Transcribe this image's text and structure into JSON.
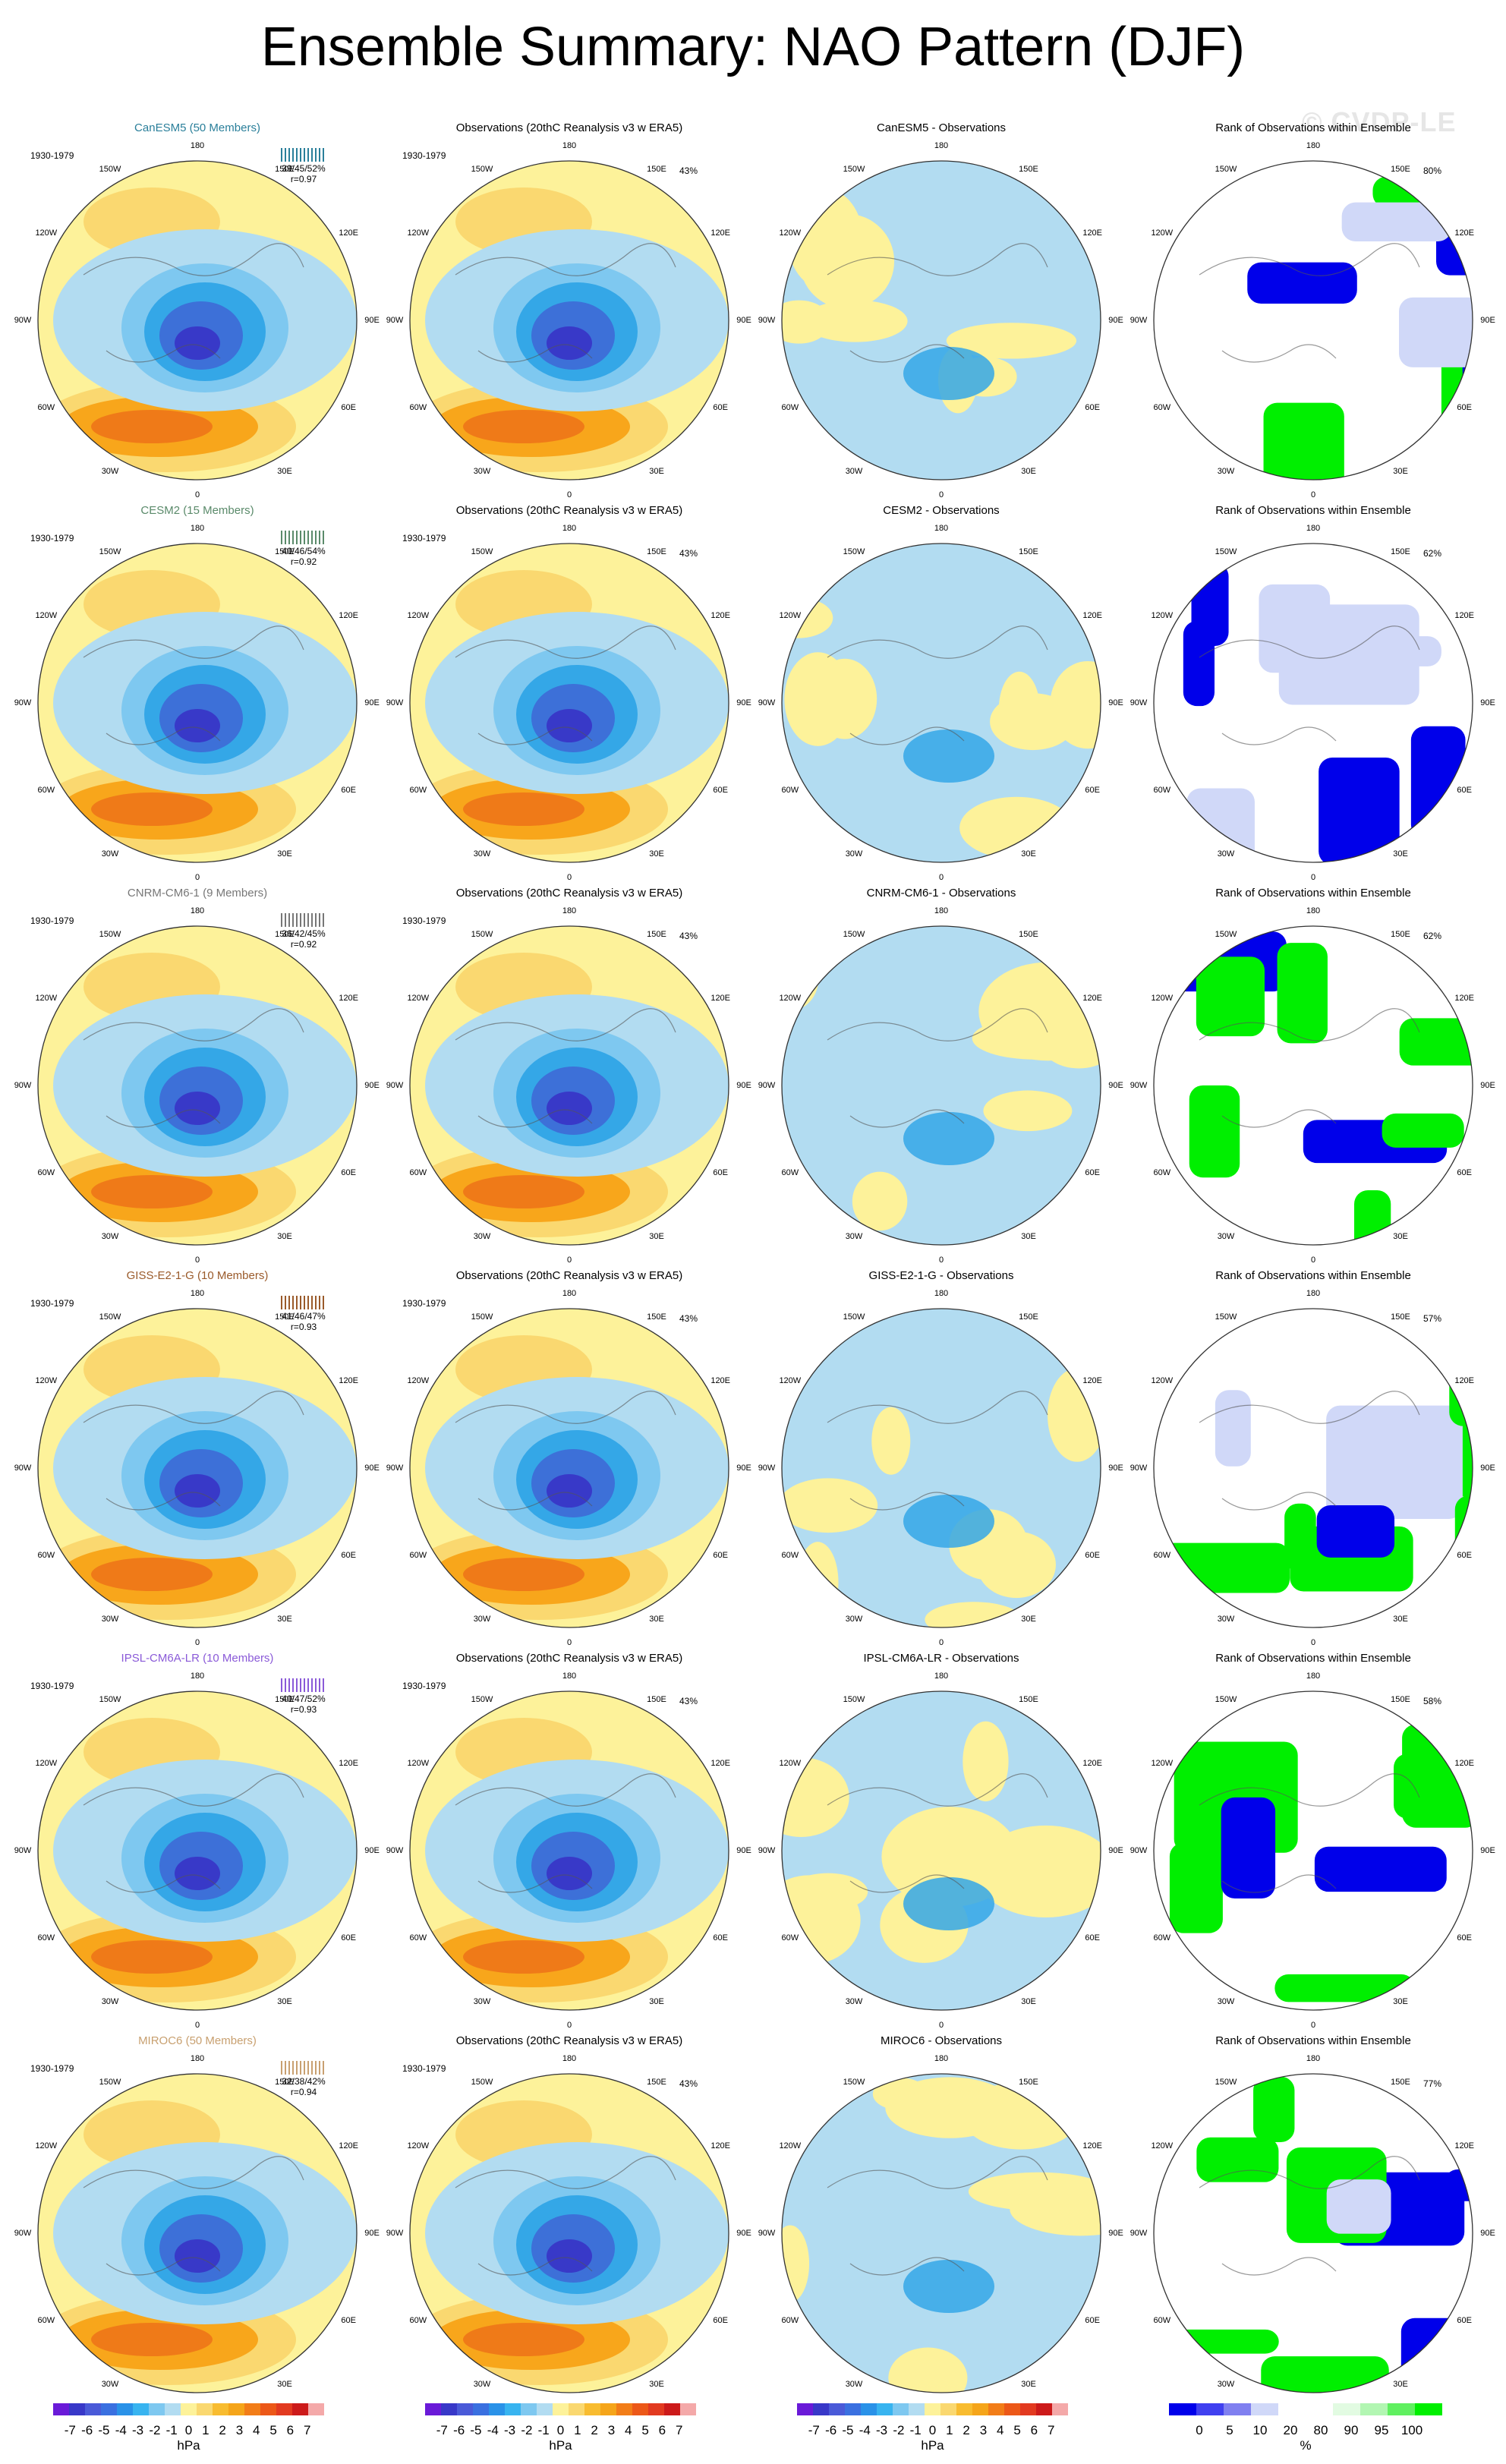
{
  "title": "Ensemble Summary: NAO Pattern (DJF)",
  "watermark": "© CVDP-LE",
  "longitude_labels": [
    "180",
    "150E",
    "120E",
    "90E",
    "60E",
    "30E",
    "0",
    "30W",
    "60W",
    "90W",
    "120W",
    "150W"
  ],
  "colors": {
    "yellow": "#fdf29a",
    "orange": "#f8a61b",
    "deep_orange": "#ef7a18",
    "light_blue": "#b2dcf1",
    "blue": "#34a7e7",
    "dark_blue": "#3d70d8",
    "navy": "#3839c8",
    "green": "#00ef00",
    "rank_blue": "#0000ea"
  },
  "rows": [
    {
      "model": "CanESM5 (50 Members)",
      "short": "CanESM5",
      "color": "#2a7f9a",
      "stats": "39/45/52%",
      "r": "r=0.97",
      "rank_pct": "80%"
    },
    {
      "model": "CESM2 (15 Members)",
      "short": "CESM2",
      "color": "#5a8a6a",
      "stats": "40/46/54%",
      "r": "r=0.92",
      "rank_pct": "62%"
    },
    {
      "model": "CNRM-CM6-1 (9 Members)",
      "short": "CNRM-CM6-1",
      "color": "#777777",
      "stats": "36/42/45%",
      "r": "r=0.92",
      "rank_pct": "62%"
    },
    {
      "model": "GISS-E2-1-G (10 Members)",
      "short": "GISS-E2-1-G",
      "color": "#9a5a2a",
      "stats": "41/46/47%",
      "r": "r=0.93",
      "rank_pct": "57%"
    },
    {
      "model": "IPSL-CM6A-LR (10 Members)",
      "short": "IPSL-CM6A-LR",
      "color": "#8a5ad8",
      "stats": "40/47/52%",
      "r": "r=0.93",
      "rank_pct": "58%"
    },
    {
      "model": "MIROC6 (50 Members)",
      "short": "MIROC6",
      "color": "#c8a070",
      "stats": "32/38/42%",
      "r": "r=0.94",
      "rank_pct": "77%"
    }
  ],
  "common": {
    "period": "1930-1979",
    "obs_title": "Observations (20thC Reanalysis v3 w ERA5)",
    "obs_pct": "43%",
    "diff_suffix": " - Observations",
    "rank_title": "Rank of Observations within Ensemble"
  },
  "colorbars": {
    "hpa_colors": [
      "#6a1ad8",
      "#3838c8",
      "#4a5ad8",
      "#3a70e0",
      "#2a92e8",
      "#38b4f0",
      "#7ec8f0",
      "#b2dcf1",
      "#fdf29a",
      "#fad870",
      "#f8bc30",
      "#f5a51a",
      "#f27d18",
      "#ec5818",
      "#e23a20",
      "#cc1a1a",
      "#f4a9a9"
    ],
    "hpa_ticks": [
      "-7",
      "-6",
      "-5",
      "-4",
      "-3",
      "-2",
      "-1",
      "0",
      "1",
      "2",
      "3",
      "4",
      "5",
      "6",
      "7"
    ],
    "hpa_unit": "hPa",
    "rank_colors": [
      "#0000ea",
      "#4040f0",
      "#8080f0",
      "#d0d8f8",
      "#ffffff",
      "#ffffff",
      "#e2fbe2",
      "#b2f6b2",
      "#60f060",
      "#00ef00"
    ],
    "rank_ticks": [
      "0",
      "5",
      "10",
      "20",
      "80",
      "90",
      "95",
      "100"
    ],
    "rank_unit": "%"
  }
}
